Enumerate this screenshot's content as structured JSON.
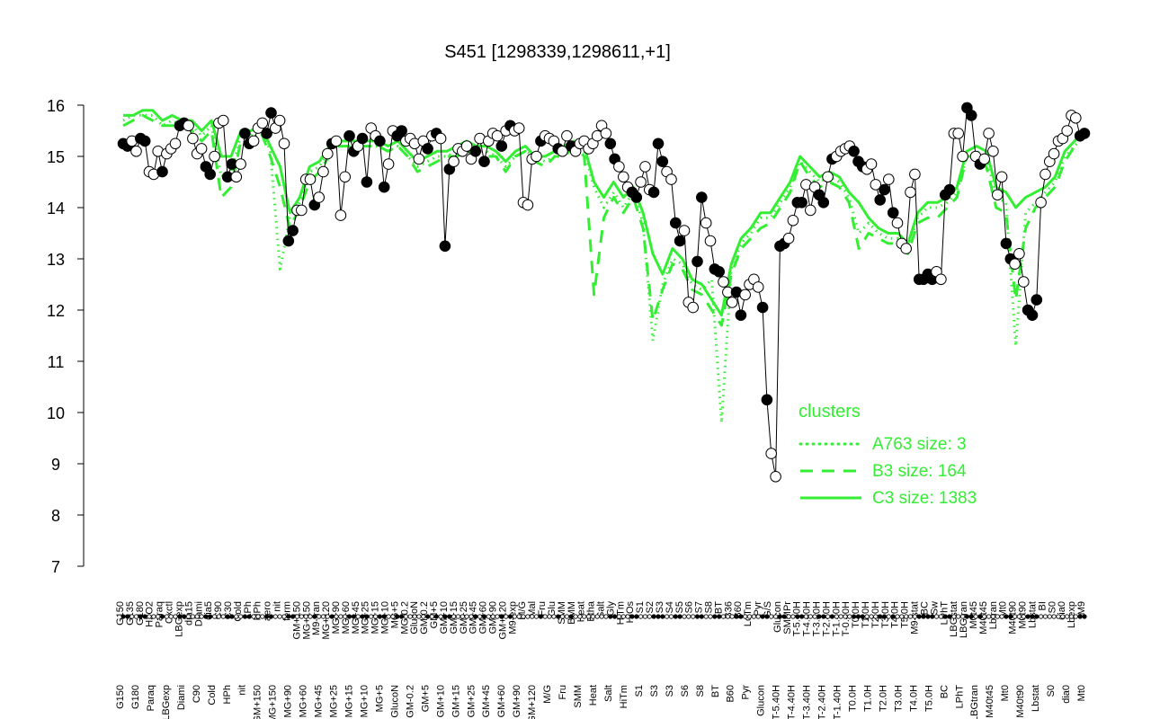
{
  "chart_data": {
    "type": "line",
    "title": "S451 [1298339,1298611,+1]",
    "xlabel": "",
    "ylabel": "",
    "ylim": [
      7,
      16
    ],
    "y_ticks": [
      "7",
      "8",
      "9",
      "10",
      "11",
      "12",
      "13",
      "14",
      "15",
      "16"
    ],
    "grid": false,
    "x_labels_top": [
      "G150",
      "G135",
      "G180",
      "H2O2",
      "Paraq",
      "Oxctl",
      "LBGexp",
      "dia15",
      "Diami",
      "dia5",
      "C90",
      "C30",
      "Cold",
      "LPh",
      "HPh",
      "aero",
      "nit",
      "ferm",
      "GM+150",
      "MG+150",
      "M9-tran",
      "MG+120",
      "MG+90",
      "MG+60",
      "MG+45",
      "MG+25",
      "MG+15",
      "MG+10",
      "MG+5",
      "MG-0.2",
      "GlucoN",
      "GM-0.2",
      "GM+5",
      "GM+10",
      "GM+15",
      "GM+25",
      "GM+45",
      "GM+60",
      "GM+90",
      "GM+120",
      "M9-exp",
      "M/G",
      "Mal",
      "Fru",
      "Glu",
      "SMM",
      "BMM",
      "Heat",
      "Etha",
      "Salt",
      "Gly",
      "HiTm",
      "HiOs",
      "S1",
      "S2",
      "S3",
      "S4",
      "S5",
      "S6",
      "S7",
      "S8",
      "BT",
      "B36",
      "B60",
      "LoTm",
      "Pyr",
      "G/S",
      "Glucon",
      "SMMPr",
      "T-5.40H",
      "T-4.40H",
      "T-3.40H",
      "T-2.40H",
      "T-1.40H",
      "T-0.40H",
      "T0.0H",
      "T1.0H",
      "T2.0H",
      "T3.0H",
      "T4.0H",
      "T5.0H",
      "M9-stat",
      "BC",
      "Sw",
      "LPhT",
      "LBGstat",
      "LBGtran",
      "M0t45",
      "M40t45",
      "Lbtran",
      "Mt0",
      "M40t90",
      "M0t90",
      "Lbstat",
      "BI",
      "S0",
      "dia0",
      "Lbexp",
      "M9"
    ],
    "x_labels_bottom": [
      "G150",
      "G180",
      "Paraq",
      "LBGexp",
      "Diami",
      "C90",
      "Cold",
      "HPh",
      "nit",
      "GM+150",
      "MG+150",
      "MG+90",
      "MG+60",
      "MG+45",
      "MG+25",
      "MG+15",
      "MG+10",
      "MG+5",
      "GlucoN",
      "GM-0.2",
      "GM+5",
      "GM+10",
      "GM+15",
      "GM+25",
      "GM+45",
      "GM+60",
      "GM+90",
      "GM+120",
      "M/G",
      "Fru",
      "SMM",
      "Heat",
      "Salt",
      "HiTm",
      "S1",
      "S3",
      "S3",
      "S6",
      "S8",
      "BT",
      "B60",
      "Pyr",
      "Glucon",
      "T-5.40H",
      "T-4.40H",
      "T-3.40H",
      "T-2.40H",
      "T-1.40H",
      "T0.0H",
      "T1.0H",
      "T2.0H",
      "T3.0H",
      "T4.0H",
      "T5.0H",
      "BC",
      "LPhT",
      "LBGtran",
      "M40t45",
      "Mt0",
      "M40t90",
      "Lbstat",
      "S0",
      "dia0",
      "Mt0"
    ],
    "series": [
      {
        "name": "C3 size: 1383",
        "style": "solid",
        "values": [
          15.8,
          15.8,
          15.9,
          15.9,
          15.7,
          15.8,
          15.7,
          15.7,
          15.5,
          15.7,
          15.0,
          15.0,
          15.5,
          15.5,
          15.6,
          15.2,
          14.8,
          13.9,
          14.2,
          14.8,
          14.9,
          15.2,
          15.3,
          15.3,
          15.3,
          15.3,
          15.3,
          15.2,
          15.3,
          15.1,
          14.9,
          15.0,
          15.1,
          15.1,
          15.2,
          15.3,
          15.2,
          15.2,
          15.1,
          14.9,
          15.1,
          15.2,
          15.0,
          15.0,
          15.1,
          15.2,
          15.3,
          15.2,
          14.5,
          14.2,
          14.5,
          14.2,
          14.4,
          13.9,
          13.1,
          12.7,
          13.2,
          13.0,
          12.6,
          12.5,
          12.2,
          11.9,
          12.9,
          13.4,
          13.6,
          13.9,
          13.9,
          14.2,
          14.5,
          15.0,
          14.8,
          14.6,
          14.7,
          14.6,
          14.3,
          14.1,
          13.8,
          13.6,
          13.5,
          13.5,
          13.3,
          13.9,
          14.1,
          14.1,
          14.2,
          14.4,
          15.1,
          15.2,
          15.1,
          14.4,
          14.3,
          14.0,
          14.2,
          14.3,
          14.4,
          14.6,
          15.1,
          15.3,
          15.5
        ]
      },
      {
        "name": "B3 size: 164",
        "style": "dashed",
        "values": [
          15.6,
          15.7,
          15.8,
          15.7,
          15.6,
          15.6,
          15.6,
          15.5,
          15.3,
          15.5,
          14.2,
          14.4,
          15.3,
          15.3,
          15.5,
          15.0,
          14.4,
          13.6,
          14.0,
          14.5,
          14.7,
          15.0,
          15.2,
          15.2,
          15.2,
          15.2,
          15.2,
          15.1,
          15.2,
          15.0,
          14.7,
          14.8,
          14.9,
          15.0,
          15.0,
          15.1,
          15.1,
          15.0,
          15.0,
          14.7,
          15.0,
          15.1,
          14.9,
          14.8,
          15.0,
          15.0,
          15.2,
          15.0,
          12.3,
          13.8,
          14.2,
          13.9,
          14.2,
          13.6,
          11.8,
          12.4,
          12.9,
          12.8,
          12.4,
          12.3,
          12.0,
          11.7,
          12.7,
          13.2,
          13.4,
          13.6,
          13.7,
          14.0,
          14.3,
          14.9,
          14.6,
          14.4,
          14.5,
          14.4,
          14.1,
          13.2,
          13.5,
          13.4,
          13.3,
          13.3,
          13.1,
          13.7,
          13.8,
          13.8,
          14.0,
          14.2,
          15.0,
          15.0,
          14.8,
          14.0,
          13.9,
          12.2,
          13.6,
          14.0,
          14.2,
          14.4,
          14.9,
          15.2,
          15.4
        ]
      },
      {
        "name": "A763 size: 3",
        "style": "dotted",
        "values": [
          15.7,
          15.8,
          15.8,
          15.8,
          15.6,
          15.7,
          15.6,
          15.6,
          15.4,
          15.6,
          14.6,
          14.7,
          15.4,
          15.4,
          15.6,
          15.1,
          12.8,
          13.8,
          14.1,
          14.7,
          14.8,
          15.1,
          15.2,
          15.2,
          15.2,
          15.2,
          15.2,
          15.1,
          15.2,
          15.0,
          14.8,
          14.9,
          15.0,
          15.0,
          15.1,
          15.2,
          15.1,
          15.1,
          15.0,
          14.8,
          15.0,
          15.1,
          15.0,
          14.9,
          15.0,
          15.1,
          15.2,
          15.1,
          14.4,
          14.0,
          14.3,
          14.0,
          14.3,
          13.7,
          11.4,
          12.5,
          13.0,
          12.9,
          12.5,
          12.4,
          12.6,
          9.8,
          12.8,
          13.3,
          13.5,
          13.8,
          13.8,
          14.1,
          14.4,
          14.9,
          14.7,
          14.5,
          14.6,
          14.5,
          14.2,
          13.5,
          13.7,
          13.5,
          13.4,
          13.4,
          13.2,
          13.8,
          14.0,
          14.0,
          14.1,
          14.3,
          15.0,
          15.1,
          15.0,
          14.2,
          14.1,
          11.3,
          13.9,
          14.1,
          14.3,
          14.5,
          15.0,
          15.2,
          15.4
        ]
      }
    ],
    "points": [
      [
        15.25,
        "f"
      ],
      [
        15.2,
        "f"
      ],
      [
        15.3,
        "o"
      ],
      [
        15.1,
        "o"
      ],
      [
        15.35,
        "f"
      ],
      [
        15.3,
        "f"
      ],
      [
        14.7,
        "o"
      ],
      [
        14.65,
        "o"
      ],
      [
        15.1,
        "o"
      ],
      [
        14.7,
        "f"
      ],
      [
        15.05,
        "o"
      ],
      [
        15.15,
        "o"
      ],
      [
        15.25,
        "o"
      ],
      [
        15.6,
        "f"
      ],
      [
        15.65,
        "f"
      ],
      [
        15.6,
        "o"
      ],
      [
        15.35,
        "o"
      ],
      [
        15.05,
        "o"
      ],
      [
        15.15,
        "o"
      ],
      [
        14.8,
        "f"
      ],
      [
        14.65,
        "f"
      ],
      [
        15.0,
        "o"
      ],
      [
        15.65,
        "o"
      ],
      [
        15.7,
        "o"
      ],
      [
        14.6,
        "f"
      ],
      [
        14.85,
        "f"
      ],
      [
        14.6,
        "o"
      ],
      [
        14.85,
        "o"
      ],
      [
        15.45,
        "f"
      ],
      [
        15.25,
        "f"
      ],
      [
        15.3,
        "o"
      ],
      [
        15.55,
        "o"
      ],
      [
        15.65,
        "o"
      ],
      [
        15.45,
        "f"
      ],
      [
        15.85,
        "f"
      ],
      [
        15.55,
        "o"
      ],
      [
        15.7,
        "o"
      ],
      [
        15.25,
        "o"
      ],
      [
        13.35,
        "f"
      ],
      [
        13.55,
        "f"
      ],
      [
        13.95,
        "o"
      ],
      [
        13.95,
        "o"
      ],
      [
        14.55,
        "o"
      ],
      [
        14.55,
        "o"
      ],
      [
        14.05,
        "f"
      ],
      [
        14.2,
        "o"
      ],
      [
        14.7,
        "o"
      ],
      [
        15.05,
        "o"
      ],
      [
        15.25,
        "f"
      ],
      [
        15.3,
        "o"
      ],
      [
        13.85,
        "o"
      ],
      [
        14.6,
        "o"
      ],
      [
        15.4,
        "f"
      ],
      [
        15.1,
        "f"
      ],
      [
        15.2,
        "o"
      ],
      [
        15.35,
        "f"
      ],
      [
        14.5,
        "f"
      ],
      [
        15.55,
        "o"
      ],
      [
        15.4,
        "o"
      ],
      [
        15.3,
        "f"
      ],
      [
        14.4,
        "f"
      ],
      [
        14.85,
        "o"
      ],
      [
        15.5,
        "o"
      ],
      [
        15.4,
        "f"
      ],
      [
        15.5,
        "f"
      ],
      [
        15.3,
        "o"
      ],
      [
        15.35,
        "o"
      ],
      [
        15.25,
        "o"
      ],
      [
        14.95,
        "o"
      ],
      [
        15.3,
        "o"
      ],
      [
        15.15,
        "f"
      ],
      [
        15.4,
        "o"
      ],
      [
        15.45,
        "f"
      ],
      [
        15.35,
        "o"
      ],
      [
        13.25,
        "f"
      ],
      [
        14.75,
        "f"
      ],
      [
        14.9,
        "o"
      ],
      [
        15.15,
        "o"
      ],
      [
        15.1,
        "o"
      ],
      [
        15.2,
        "o"
      ],
      [
        14.95,
        "o"
      ],
      [
        15.1,
        "f"
      ],
      [
        15.35,
        "o"
      ],
      [
        14.9,
        "f"
      ],
      [
        15.3,
        "o"
      ],
      [
        15.45,
        "o"
      ],
      [
        15.4,
        "o"
      ],
      [
        15.2,
        "f"
      ],
      [
        15.5,
        "o"
      ],
      [
        15.6,
        "f"
      ],
      [
        15.5,
        "o"
      ],
      [
        15.55,
        "o"
      ],
      [
        14.1,
        "o"
      ],
      [
        14.05,
        "o"
      ],
      [
        14.95,
        "o"
      ],
      [
        15.0,
        "o"
      ],
      [
        15.3,
        "f"
      ],
      [
        15.4,
        "o"
      ],
      [
        15.35,
        "o"
      ],
      [
        15.3,
        "o"
      ],
      [
        15.15,
        "f"
      ],
      [
        15.1,
        "o"
      ],
      [
        15.4,
        "o"
      ],
      [
        15.2,
        "f"
      ],
      [
        15.1,
        "o"
      ],
      [
        15.25,
        "o"
      ],
      [
        15.3,
        "o"
      ],
      [
        15.15,
        "o"
      ],
      [
        15.25,
        "o"
      ],
      [
        15.4,
        "o"
      ],
      [
        15.6,
        "o"
      ],
      [
        15.45,
        "o"
      ],
      [
        15.25,
        "f"
      ],
      [
        14.95,
        "f"
      ],
      [
        14.8,
        "o"
      ],
      [
        14.6,
        "o"
      ],
      [
        14.4,
        "o"
      ],
      [
        14.3,
        "f"
      ],
      [
        14.2,
        "f"
      ],
      [
        14.5,
        "o"
      ],
      [
        14.8,
        "o"
      ],
      [
        14.35,
        "o"
      ],
      [
        14.3,
        "f"
      ],
      [
        15.25,
        "f"
      ],
      [
        14.9,
        "f"
      ],
      [
        14.7,
        "o"
      ],
      [
        14.55,
        "o"
      ],
      [
        13.7,
        "f"
      ],
      [
        13.35,
        "f"
      ],
      [
        13.55,
        "o"
      ],
      [
        12.15,
        "o"
      ],
      [
        12.05,
        "o"
      ],
      [
        12.95,
        "f"
      ],
      [
        14.2,
        "f"
      ],
      [
        13.7,
        "o"
      ],
      [
        13.35,
        "o"
      ],
      [
        12.8,
        "f"
      ],
      [
        12.75,
        "f"
      ],
      [
        12.55,
        "o"
      ],
      [
        12.35,
        "o"
      ],
      [
        12.15,
        "o"
      ],
      [
        12.35,
        "f"
      ],
      [
        11.9,
        "f"
      ],
      [
        12.3,
        "o"
      ],
      [
        12.5,
        "o"
      ],
      [
        12.6,
        "o"
      ],
      [
        12.45,
        "o"
      ],
      [
        12.05,
        "f"
      ],
      [
        10.25,
        "f"
      ],
      [
        9.2,
        "o"
      ],
      [
        8.75,
        "o"
      ],
      [
        13.25,
        "f"
      ],
      [
        13.3,
        "f"
      ],
      [
        13.4,
        "o"
      ],
      [
        13.75,
        "o"
      ],
      [
        14.1,
        "f"
      ],
      [
        14.1,
        "f"
      ],
      [
        14.45,
        "o"
      ],
      [
        13.95,
        "o"
      ],
      [
        14.4,
        "o"
      ],
      [
        14.25,
        "f"
      ],
      [
        14.1,
        "f"
      ],
      [
        14.6,
        "o"
      ],
      [
        14.95,
        "f"
      ],
      [
        15.0,
        "o"
      ],
      [
        15.1,
        "o"
      ],
      [
        15.15,
        "o"
      ],
      [
        15.2,
        "o"
      ],
      [
        15.1,
        "f"
      ],
      [
        14.9,
        "f"
      ],
      [
        14.8,
        "f"
      ],
      [
        14.75,
        "o"
      ],
      [
        14.85,
        "o"
      ],
      [
        14.45,
        "o"
      ],
      [
        14.15,
        "f"
      ],
      [
        14.35,
        "f"
      ],
      [
        14.55,
        "o"
      ],
      [
        13.9,
        "f"
      ],
      [
        13.7,
        "o"
      ],
      [
        13.3,
        "o"
      ],
      [
        13.2,
        "o"
      ],
      [
        14.3,
        "o"
      ],
      [
        14.65,
        "o"
      ],
      [
        12.6,
        "f"
      ],
      [
        12.6,
        "f"
      ],
      [
        12.7,
        "f"
      ],
      [
        12.6,
        "f"
      ],
      [
        12.75,
        "o"
      ],
      [
        12.6,
        "o"
      ],
      [
        14.25,
        "f"
      ],
      [
        14.35,
        "f"
      ],
      [
        15.45,
        "o"
      ],
      [
        15.45,
        "o"
      ],
      [
        15.0,
        "o"
      ],
      [
        15.95,
        "f"
      ],
      [
        15.8,
        "f"
      ],
      [
        15.0,
        "o"
      ],
      [
        14.85,
        "f"
      ],
      [
        14.95,
        "o"
      ],
      [
        15.45,
        "o"
      ],
      [
        15.1,
        "o"
      ],
      [
        14.25,
        "o"
      ],
      [
        14.6,
        "o"
      ],
      [
        13.3,
        "f"
      ],
      [
        13.0,
        "f"
      ],
      [
        12.9,
        "o"
      ],
      [
        13.1,
        "o"
      ],
      [
        12.55,
        "o"
      ],
      [
        12.0,
        "f"
      ],
      [
        11.9,
        "f"
      ],
      [
        12.2,
        "f"
      ],
      [
        14.1,
        "o"
      ],
      [
        14.65,
        "o"
      ],
      [
        14.9,
        "o"
      ],
      [
        15.05,
        "o"
      ],
      [
        15.3,
        "o"
      ],
      [
        15.35,
        "o"
      ],
      [
        15.5,
        "o"
      ],
      [
        15.8,
        "o"
      ],
      [
        15.75,
        "o"
      ],
      [
        15.4,
        "f"
      ],
      [
        15.45,
        "f"
      ]
    ]
  },
  "legend": {
    "title": "clusters",
    "color": "#33ee33",
    "placement": "bottom-right",
    "items": [
      {
        "label": "A763 size: 3",
        "style": "dotted"
      },
      {
        "label": "B3 size: 164",
        "style": "dashed"
      },
      {
        "label": "C3 size: 1383",
        "style": "solid"
      }
    ]
  },
  "colors": {
    "cluster_lines": "#33ee33",
    "points": "#000000"
  }
}
